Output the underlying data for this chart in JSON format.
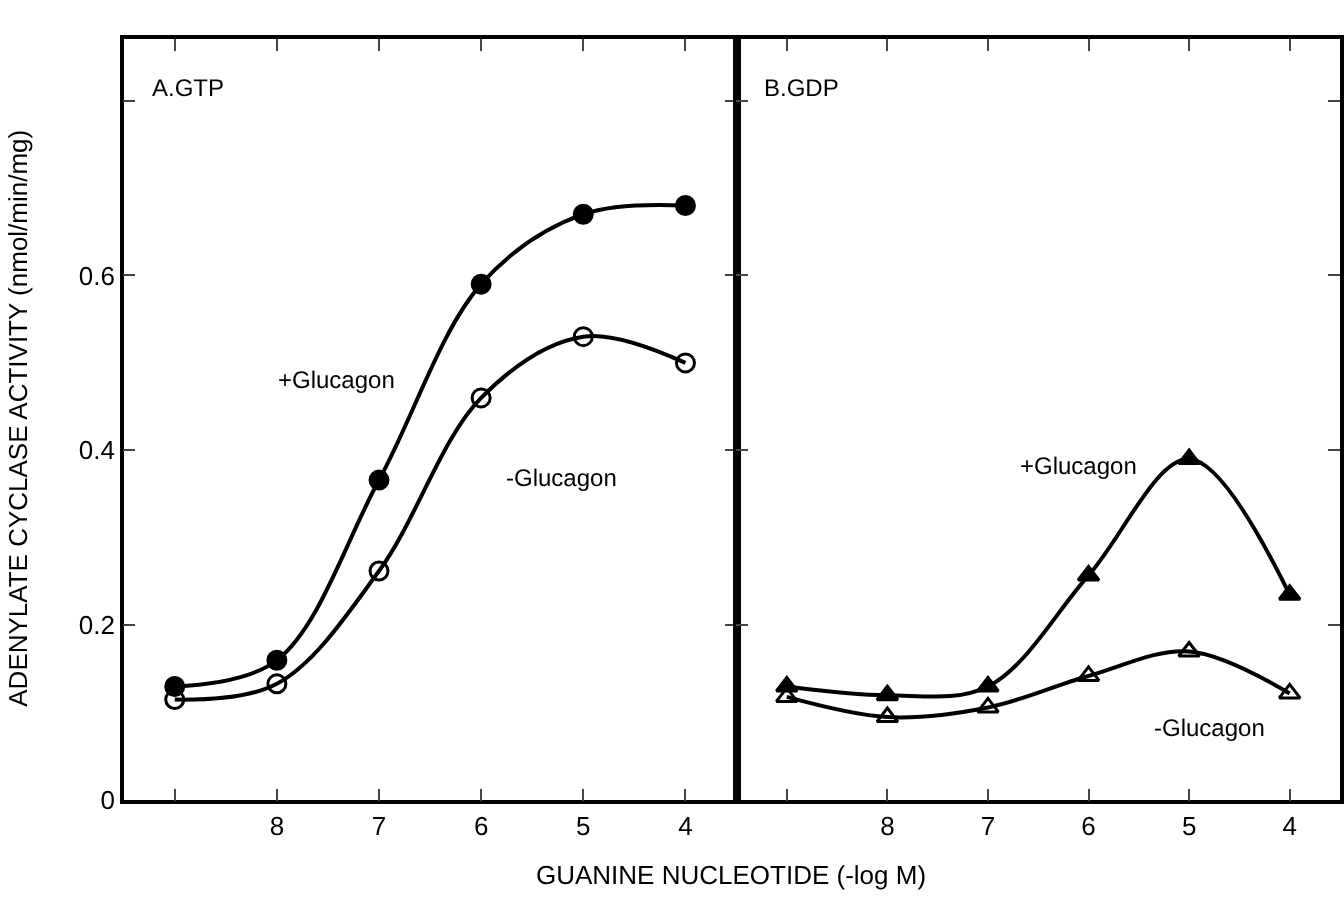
{
  "chart_data": [
    {
      "type": "line",
      "title": "A.GTP",
      "xlabel": "GUANINE NUCLEOTIDE (-log M)",
      "ylabel": "ADENYLATE CYCLASE ACTIVITY (nmol/min/mg)",
      "x": [
        9,
        8,
        7,
        6,
        5,
        4
      ],
      "xlim": [
        9.5,
        3.5
      ],
      "xticks": [
        {
          "value": 9,
          "label": null
        },
        8,
        7,
        6,
        5,
        4
      ],
      "ylim": [
        0,
        0.87
      ],
      "yticks": [
        0,
        0.2,
        0.4,
        0.6,
        {
          "value": 0.8,
          "label": null
        }
      ],
      "legend": false,
      "series": [
        {
          "name": "+Glucagon",
          "color": "#000000",
          "marker": "circle",
          "values": [
            0.13,
            0.16,
            0.366,
            0.59,
            0.67,
            0.68
          ]
        },
        {
          "name": "-Glucagon",
          "color": "#000000",
          "marker": "circle-open",
          "values": [
            0.115,
            0.133,
            0.262,
            0.46,
            0.53,
            0.5
          ]
        }
      ]
    },
    {
      "type": "line",
      "title": "B.GDP",
      "x": [
        9,
        8,
        7,
        6,
        5,
        4
      ],
      "xlim": [
        9.5,
        3.5
      ],
      "xticks": [
        {
          "value": 9,
          "label": null
        },
        8,
        7,
        6,
        5,
        4
      ],
      "ylim": [
        0,
        0.87
      ],
      "yticks": [
        {
          "value": 0,
          "label": null
        },
        {
          "value": 0.2,
          "label": null
        },
        {
          "value": 0.4,
          "label": null
        },
        {
          "value": 0.6,
          "label": null
        },
        {
          "value": 0.8,
          "label": null
        }
      ],
      "tick_labels": "x",
      "legend": false,
      "series": [
        {
          "name": "+Glucagon",
          "color": "#000000",
          "marker": "triangle",
          "values": [
            0.13,
            0.12,
            0.13,
            0.257,
            0.39,
            0.235
          ]
        },
        {
          "name": "-Glucagon",
          "color": "#000000",
          "marker": "triangle-open",
          "values": [
            0.118,
            0.095,
            0.106,
            0.142,
            0.17,
            0.122
          ]
        }
      ]
    }
  ]
}
